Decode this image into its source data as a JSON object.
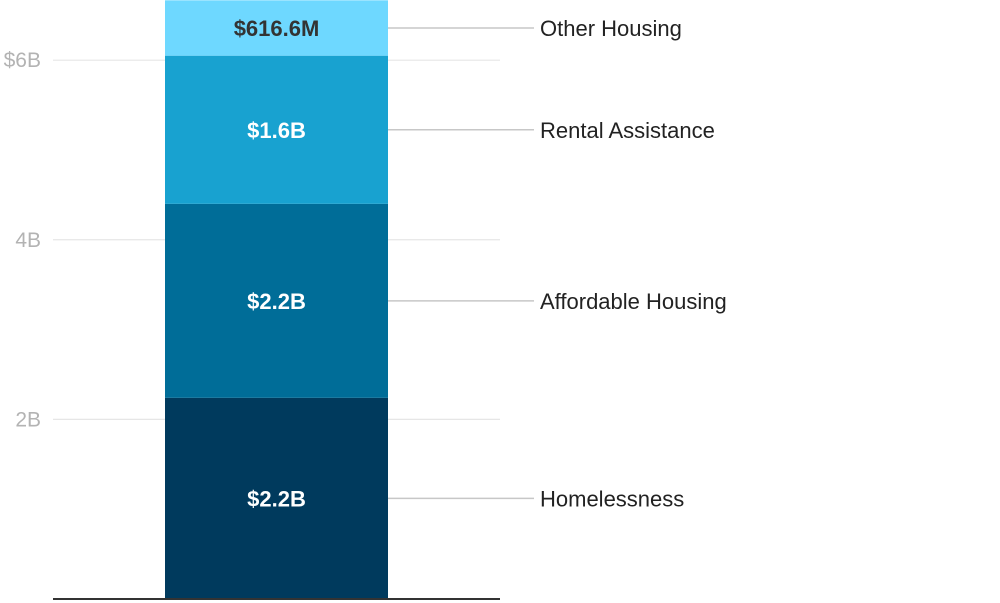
{
  "chart_data": {
    "type": "bar",
    "stacked": true,
    "categories": [
      ""
    ],
    "series": [
      {
        "name": "Homelessness",
        "values": [
          2.24
        ],
        "label": "$2.2B",
        "color": "#003a5d",
        "label_color": "#ffffff"
      },
      {
        "name": "Affordable Housing",
        "values": [
          2.16
        ],
        "label": "$2.2B",
        "color": "#006d98",
        "label_color": "#ffffff"
      },
      {
        "name": "Rental Assistance",
        "values": [
          1.65
        ],
        "label": "$1.6B",
        "color": "#18a2d0",
        "label_color": "#ffffff"
      },
      {
        "name": "Other Housing",
        "values": [
          0.6166
        ],
        "label": "$616.6M",
        "color": "#6ed8ff",
        "label_color": "#333333"
      }
    ],
    "y_ticks": [
      {
        "value": 2,
        "label": "2B"
      },
      {
        "value": 4,
        "label": "4B"
      },
      {
        "value": 6,
        "label": "$6B"
      }
    ],
    "ylim": [
      0,
      6.67
    ],
    "grid": true,
    "legend": "right, leader lines",
    "title": "",
    "xlabel": "",
    "ylabel": ""
  }
}
